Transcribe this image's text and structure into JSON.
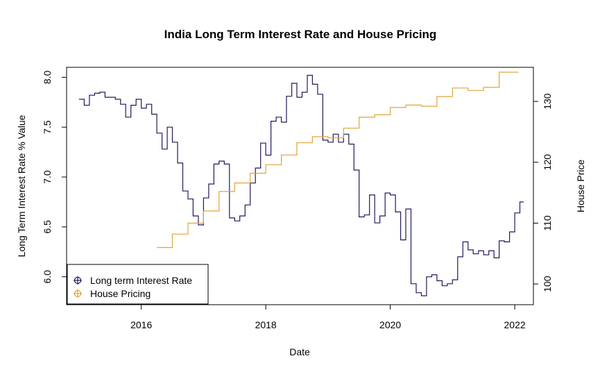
{
  "chart_data": {
    "type": "line",
    "title": "India Long Term Interest Rate and House Pricing",
    "xlabel": "Date",
    "ylabel_left": "Long Term Interest Rate % Value",
    "ylabel_right": "House Price",
    "xlim": [
      2014.8,
      2022.3
    ],
    "ylim_left": [
      5.72,
      8.1
    ],
    "ylim_right": [
      96.6,
      135.6
    ],
    "x_ticks": [
      2016,
      2018,
      2020,
      2022
    ],
    "y_ticks_left": [
      6.0,
      6.5,
      7.0,
      7.5,
      8.0
    ],
    "y_ticks_right": [
      100,
      110,
      120,
      130
    ],
    "grid": false,
    "legend_position": "bottom-left",
    "series": [
      {
        "name": "Long term Interest Rate",
        "axis": "left",
        "color": "#1f1a5c",
        "step": true,
        "x": [
          2015.0,
          2015.083,
          2015.167,
          2015.25,
          2015.333,
          2015.417,
          2015.5,
          2015.583,
          2015.667,
          2015.75,
          2015.833,
          2015.917,
          2016.0,
          2016.083,
          2016.167,
          2016.25,
          2016.333,
          2016.417,
          2016.5,
          2016.583,
          2016.667,
          2016.75,
          2016.833,
          2016.917,
          2017.0,
          2017.083,
          2017.167,
          2017.25,
          2017.333,
          2017.417,
          2017.5,
          2017.583,
          2017.667,
          2017.75,
          2017.833,
          2017.917,
          2018.0,
          2018.083,
          2018.167,
          2018.25,
          2018.333,
          2018.417,
          2018.5,
          2018.583,
          2018.667,
          2018.75,
          2018.833,
          2018.917,
          2019.0,
          2019.083,
          2019.167,
          2019.25,
          2019.333,
          2019.417,
          2019.5,
          2019.583,
          2019.667,
          2019.75,
          2019.833,
          2019.917,
          2020.0,
          2020.083,
          2020.167,
          2020.25,
          2020.333,
          2020.417,
          2020.5,
          2020.583,
          2020.667,
          2020.75,
          2020.833,
          2020.917,
          2021.0,
          2021.083,
          2021.167,
          2021.25,
          2021.333,
          2021.417,
          2021.5,
          2021.583,
          2021.667,
          2021.75,
          2021.833,
          2021.917,
          2022.0,
          2022.083
        ],
        "values": [
          7.78,
          7.72,
          7.82,
          7.84,
          7.85,
          7.8,
          7.8,
          7.78,
          7.73,
          7.6,
          7.72,
          7.78,
          7.69,
          7.73,
          7.63,
          7.44,
          7.28,
          7.5,
          7.35,
          7.14,
          6.86,
          6.78,
          6.61,
          6.52,
          6.79,
          6.93,
          7.13,
          7.16,
          7.13,
          6.59,
          6.56,
          6.61,
          6.72,
          6.94,
          7.09,
          7.34,
          7.22,
          7.56,
          7.6,
          7.55,
          7.81,
          7.94,
          7.8,
          7.85,
          8.02,
          7.93,
          7.83,
          7.37,
          7.35,
          7.43,
          7.35,
          7.43,
          7.33,
          7.07,
          6.6,
          6.62,
          6.82,
          6.54,
          6.61,
          6.84,
          6.82,
          6.65,
          6.37,
          6.68,
          5.93,
          5.84,
          5.81,
          6.0,
          6.02,
          5.96,
          5.91,
          5.93,
          5.97,
          6.2,
          6.35,
          6.27,
          6.23,
          6.26,
          6.22,
          6.26,
          6.19,
          6.36,
          6.35,
          6.45,
          6.64,
          6.75
        ]
      },
      {
        "name": "House Pricing",
        "axis": "right",
        "color": "#e0a33a",
        "step": true,
        "x": [
          2016.25,
          2016.5,
          2016.75,
          2017.0,
          2017.25,
          2017.5,
          2017.75,
          2018.0,
          2018.25,
          2018.5,
          2018.75,
          2019.0,
          2019.25,
          2019.5,
          2019.75,
          2020.0,
          2020.25,
          2020.5,
          2020.75,
          2021.0,
          2021.25,
          2021.5,
          2021.75,
          2022.0
        ],
        "values": [
          106.0,
          108.2,
          110.0,
          112.0,
          115.2,
          116.6,
          118.2,
          119.6,
          121.2,
          123.2,
          124.2,
          124.0,
          125.6,
          127.4,
          127.8,
          129.0,
          129.4,
          129.2,
          130.8,
          132.2,
          131.8,
          132.3,
          134.8,
          134.8
        ]
      }
    ]
  }
}
